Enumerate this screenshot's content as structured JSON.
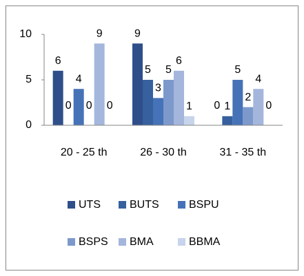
{
  "chart_data": {
    "type": "bar",
    "categories": [
      "20 - 25 th",
      "26 - 30 th",
      "31 - 35 th"
    ],
    "series": [
      {
        "name": "UTS",
        "color": "#2f4f8a",
        "values": [
          6,
          9,
          0
        ]
      },
      {
        "name": "BUTS",
        "color": "#36609e",
        "values": [
          0,
          5,
          1
        ]
      },
      {
        "name": "BSPU",
        "color": "#4672b8",
        "values": [
          4,
          3,
          5
        ]
      },
      {
        "name": "BSPS",
        "color": "#7d99cc",
        "values": [
          0,
          5,
          2
        ]
      },
      {
        "name": "BMA",
        "color": "#a4b6dc",
        "values": [
          9,
          6,
          4
        ]
      },
      {
        "name": "BBMA",
        "color": "#c8d4ec",
        "values": [
          0,
          1,
          0
        ]
      }
    ],
    "ylim": [
      0,
      10
    ],
    "yticks": [
      0,
      5,
      10
    ],
    "grid": false,
    "legend": "bottom"
  }
}
